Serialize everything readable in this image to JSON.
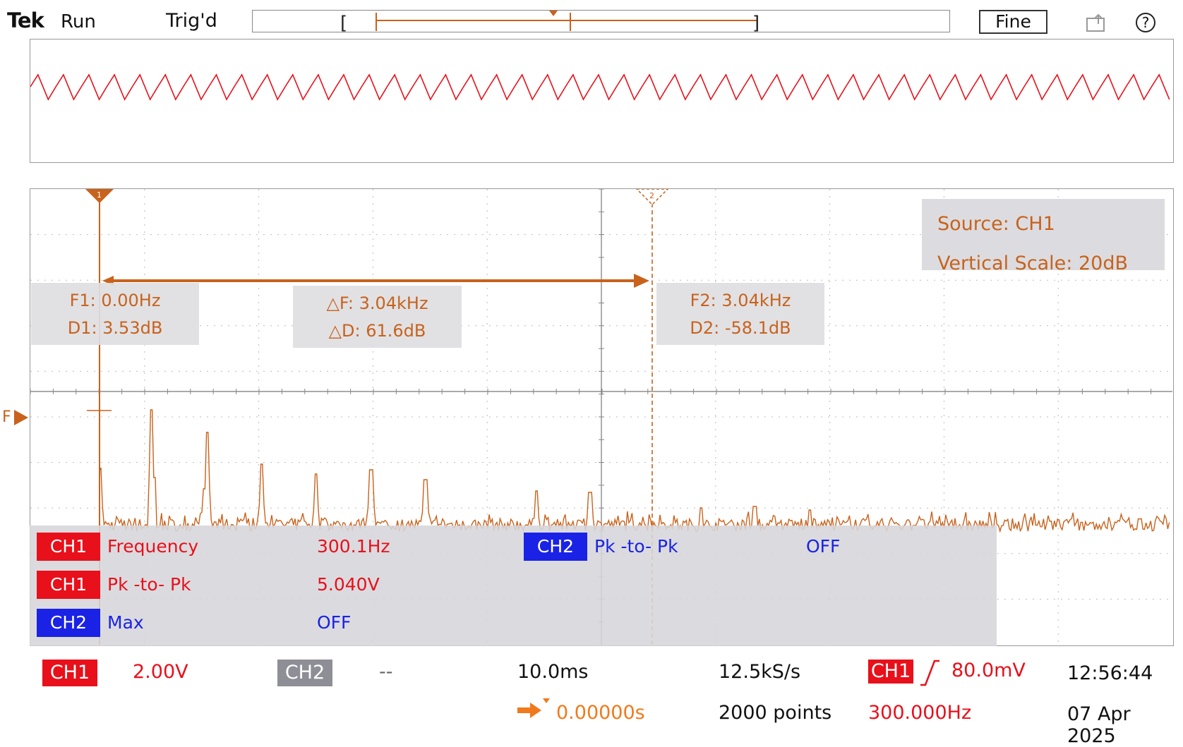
{
  "header": {
    "brand": "Tek",
    "run_state": "Run",
    "trigger_state": "Trig'd",
    "fine_label": "Fine",
    "help_glyph": "?"
  },
  "graticule": {
    "fft_trace_color": "#c8621c",
    "time_trace_color": "#e8101a",
    "cursor1_label": "1",
    "cursor2_label": "2",
    "ref_marker_label": "F"
  },
  "cursors": {
    "f1": "F1: 0.00Hz",
    "d1": "D1: 3.53dB",
    "delta_f": "△F: 3.04kHz",
    "delta_d": "△D: 61.6dB",
    "f2": "F2: 3.04kHz",
    "d2": "D2: -58.1dB"
  },
  "source_box": {
    "source": "Source: CH1",
    "vertical_scale": "Vertical Scale: 20dB"
  },
  "measurements": [
    {
      "channel": "CH1",
      "name": "Frequency",
      "value": "300.1Hz",
      "color": "red"
    },
    {
      "channel": "CH1",
      "name": "Pk -to- Pk",
      "value": "5.040V",
      "color": "red"
    },
    {
      "channel": "CH2",
      "name": "Max",
      "value": "OFF",
      "color": "blue"
    },
    {
      "channel": "CH2",
      "name": "Pk -to- Pk",
      "value": "OFF",
      "color": "blue"
    }
  ],
  "status_bar": {
    "ch1_label": "CH1",
    "ch1_scale": "2.00V",
    "ch2_label": "CH2",
    "ch2_scale": "--",
    "timebase": "10.0ms",
    "trigger_position": "0.00000s",
    "sample_rate": "12.5kS/s",
    "record_length": "2000 points",
    "trigger_channel": "CH1",
    "trigger_level": "80.0mV",
    "trigger_frequency": "300.000Hz",
    "time": "12:56:44",
    "date": "07 Apr 2025"
  }
}
